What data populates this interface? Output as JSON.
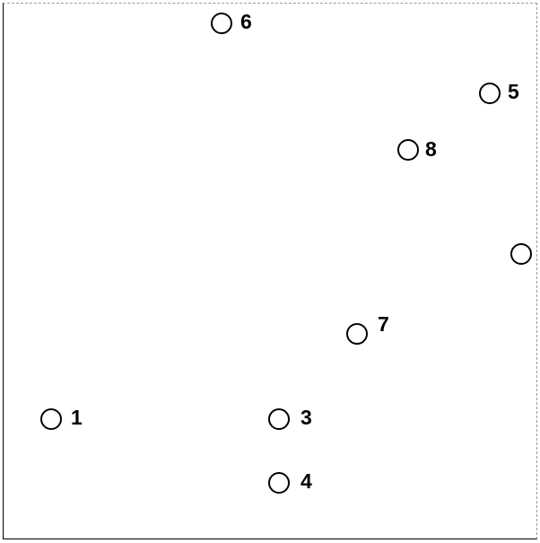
{
  "nodes": [
    {
      "id": "node-6",
      "label": "6"
    },
    {
      "id": "node-5",
      "label": "5"
    },
    {
      "id": "node-8",
      "label": "8"
    },
    {
      "id": "node-edge",
      "label": ""
    },
    {
      "id": "node-7",
      "label": "7"
    },
    {
      "id": "node-1",
      "label": "1"
    },
    {
      "id": "node-3",
      "label": "3"
    },
    {
      "id": "node-4",
      "label": "4"
    }
  ]
}
